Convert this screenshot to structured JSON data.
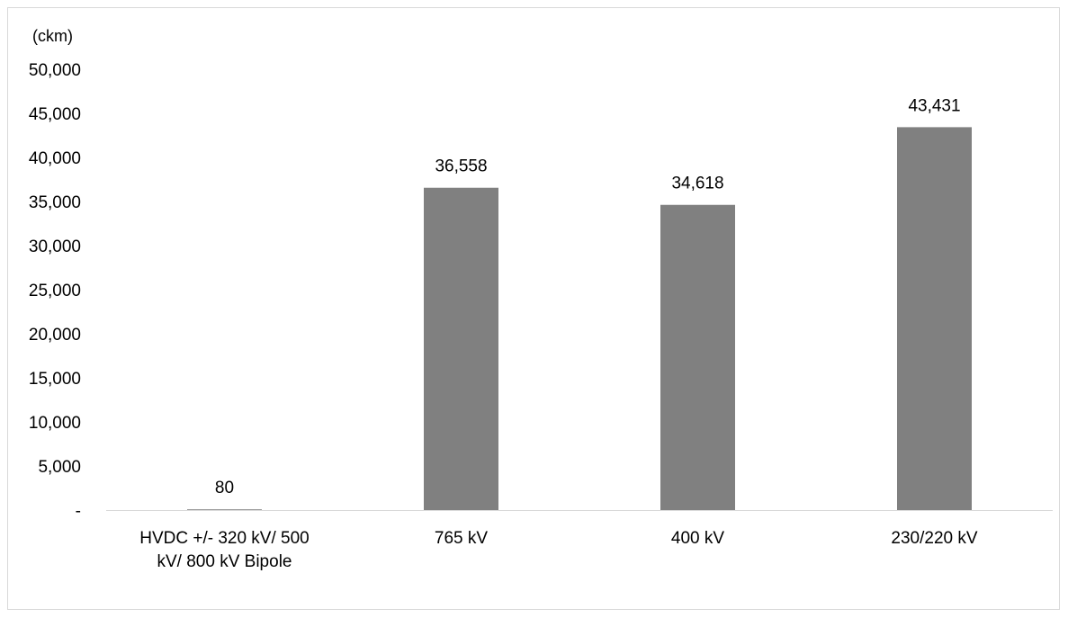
{
  "chart_data": {
    "type": "bar",
    "unit_label": "(ckm)",
    "categories": [
      [
        "HVDC +/- 320 kV/ 500",
        "kV/ 800 kV Bipole"
      ],
      [
        "765 kV"
      ],
      [
        "400 kV"
      ],
      [
        "230/220 kV"
      ]
    ],
    "values": [
      80,
      36558,
      34618,
      43431
    ],
    "data_labels": [
      "80",
      "36,558",
      "34,618",
      "43,431"
    ],
    "ylim": [
      0,
      50000
    ],
    "yticks": [
      0,
      5000,
      10000,
      15000,
      20000,
      25000,
      30000,
      35000,
      40000,
      45000,
      50000
    ],
    "ytick_labels": [
      "-",
      "5,000",
      "10,000",
      "15,000",
      "20,000",
      "25,000",
      "30,000",
      "35,000",
      "40,000",
      "45,000",
      "50,000"
    ],
    "bar_color": "#808080",
    "grid": false,
    "legend": "none"
  }
}
